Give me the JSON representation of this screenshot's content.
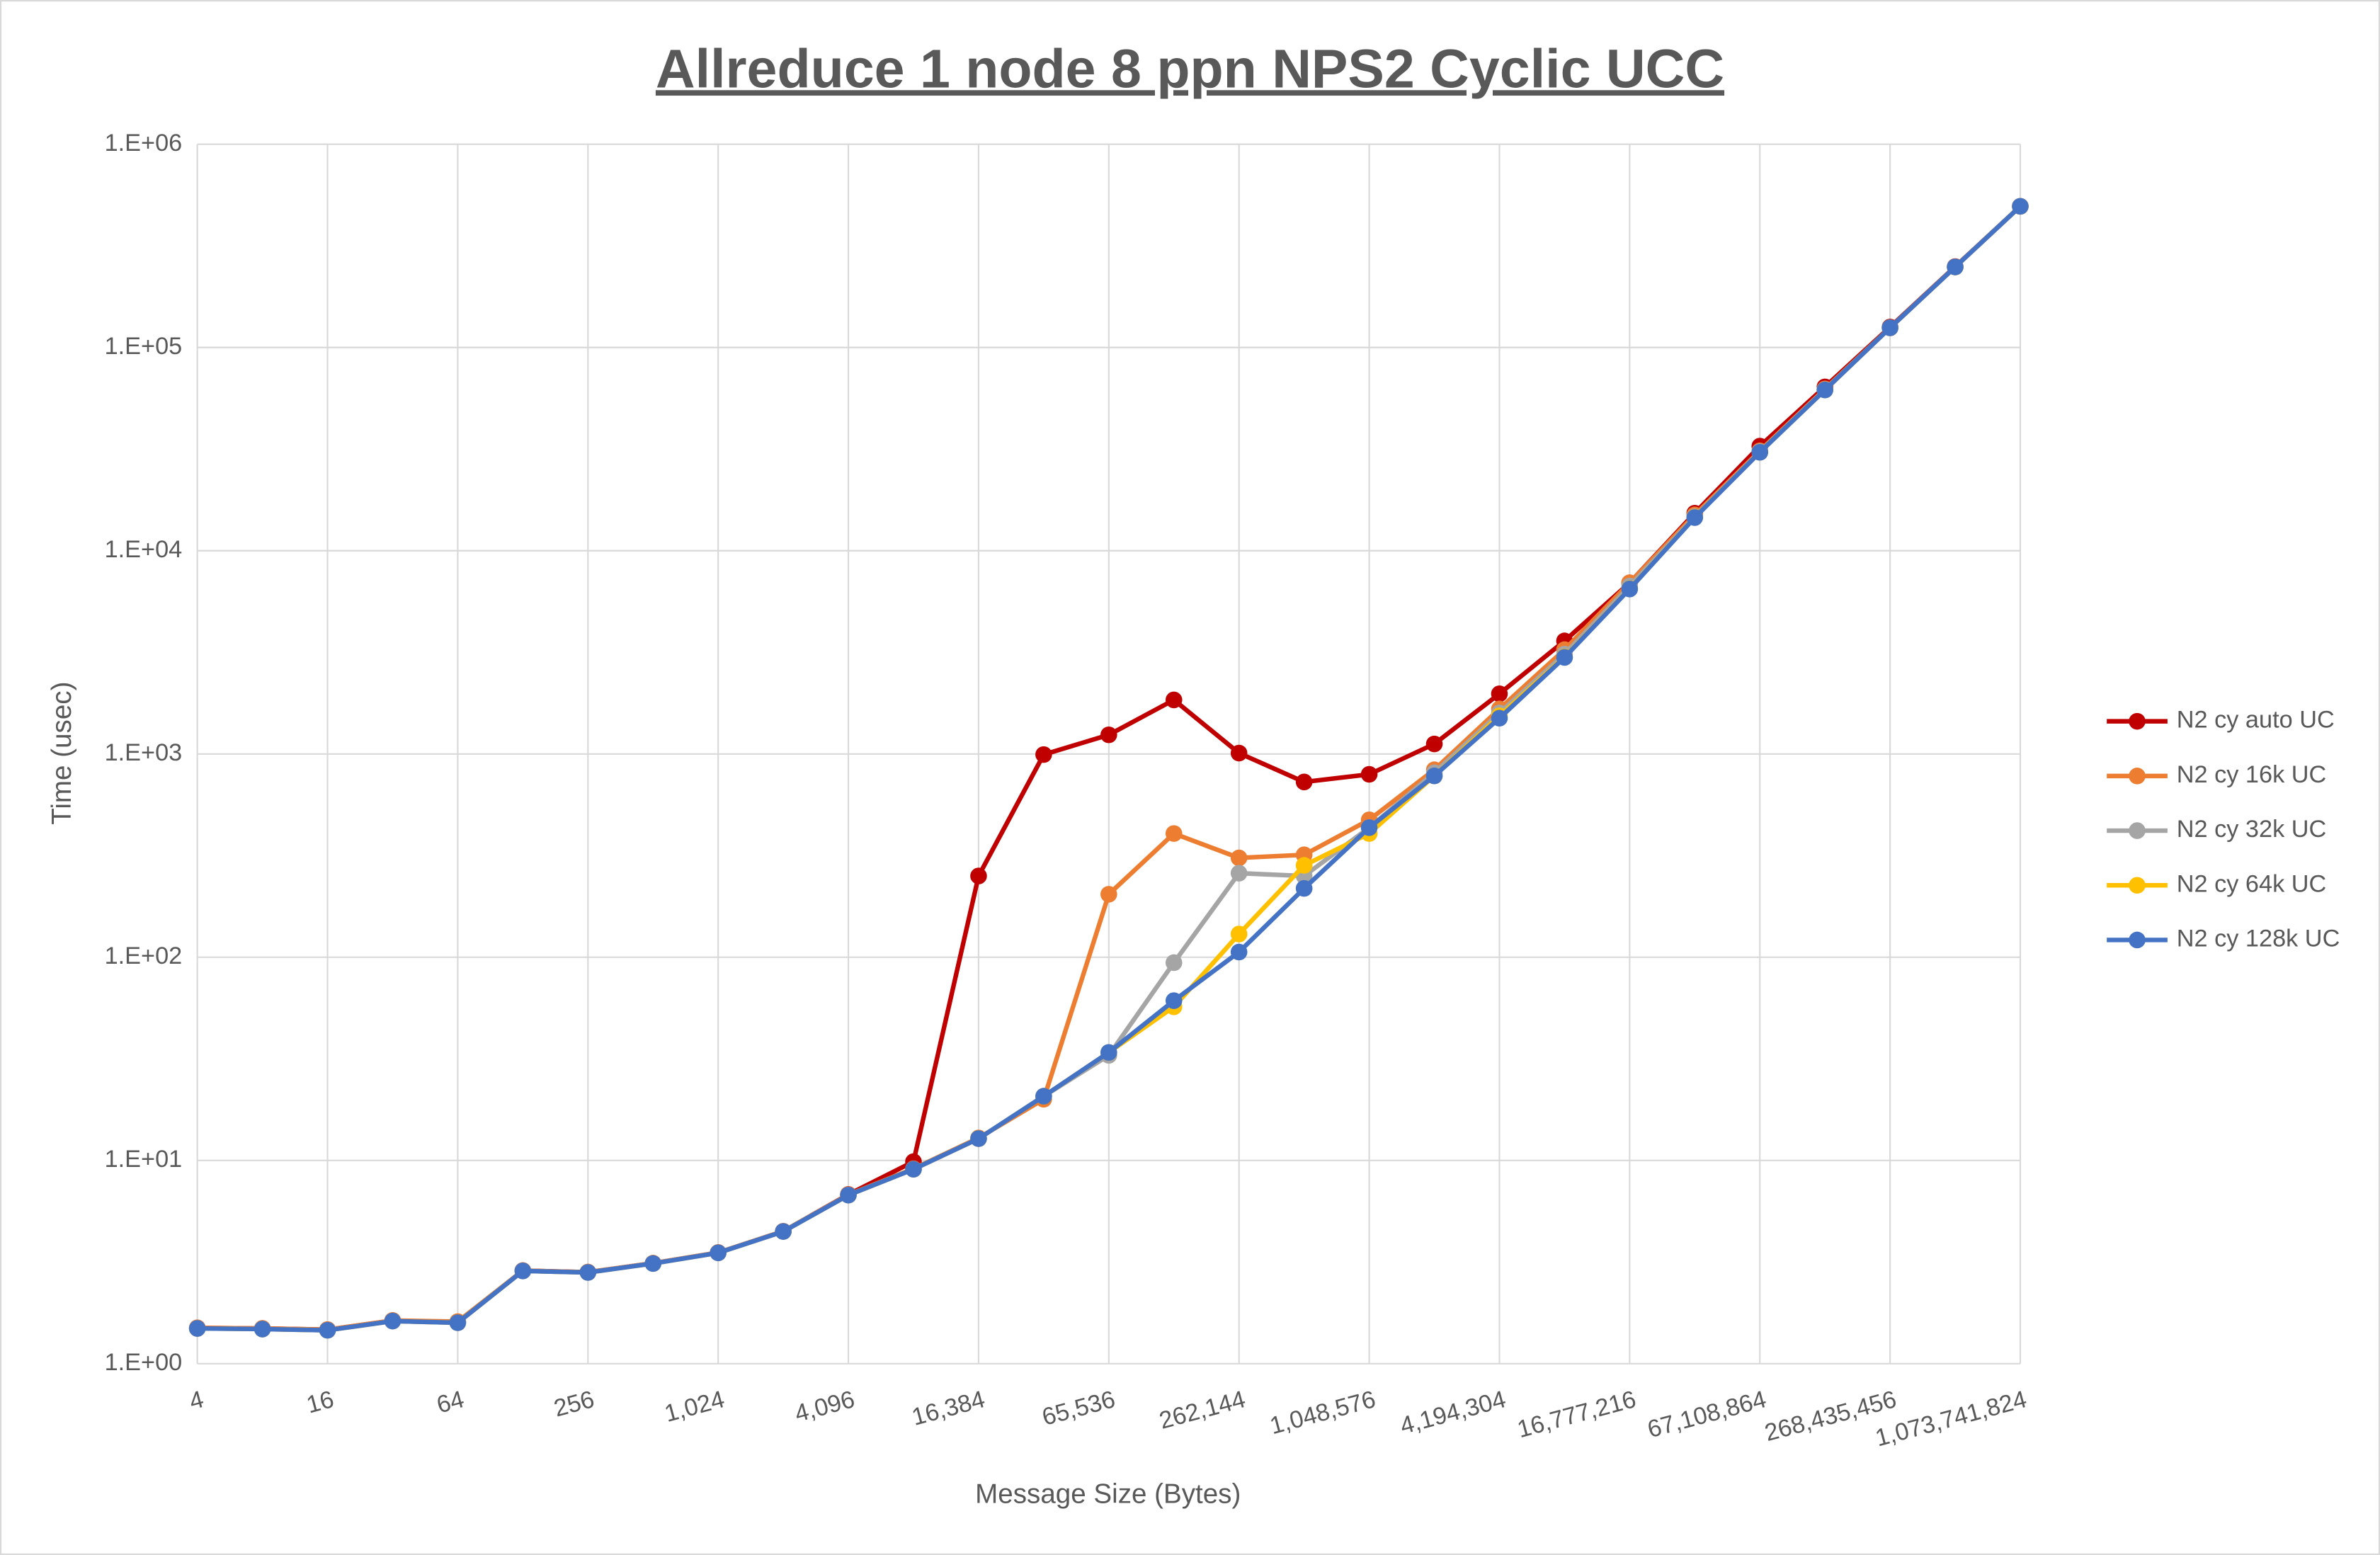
{
  "chart_data": {
    "type": "line",
    "title": "Allreduce 1 node 8 ppn NPS2 Cyclic UCC",
    "x_label": "Message Size (Bytes)",
    "y_label": "Time (usec)",
    "x_log_base": 2,
    "y_log": true,
    "grid": true,
    "legend": "right",
    "x": [
      4,
      8,
      16,
      32,
      64,
      128,
      256,
      512,
      1024,
      2048,
      4096,
      8192,
      16384,
      32768,
      65536,
      131072,
      262144,
      524288,
      1048576,
      2097152,
      4194304,
      8388608,
      16777216,
      33554432,
      67108864,
      134217728,
      268435456,
      536870912,
      1073741824
    ],
    "xlim": [
      4,
      1073741824
    ],
    "xticks": [
      4,
      16,
      64,
      256,
      {
        "value": 1024,
        "label": "1,024"
      },
      {
        "value": 4096,
        "label": "4,096"
      },
      {
        "value": 16384,
        "label": "16,384"
      },
      {
        "value": 65536,
        "label": "65,536"
      },
      {
        "value": 262144,
        "label": "262,144"
      },
      {
        "value": 1048576,
        "label": "1,048,576"
      },
      {
        "value": 4194304,
        "label": "4,194,304"
      },
      {
        "value": 16777216,
        "label": "16,777,216"
      },
      {
        "value": 67108864,
        "label": "67,108,864"
      },
      {
        "value": 268435456,
        "label": "268,435,456"
      },
      {
        "value": 1073741824,
        "label": "1,073,741,824"
      }
    ],
    "ylim": [
      1,
      1000000
    ],
    "yticks": [
      {
        "value": 1,
        "label": "1.E+00"
      },
      {
        "value": 10,
        "label": "1.E+01"
      },
      {
        "value": 100,
        "label": "1.E+02"
      },
      {
        "value": 1000,
        "label": "1.E+03"
      },
      {
        "value": 10000,
        "label": "1.E+04"
      },
      {
        "value": 100000,
        "label": "1.E+05"
      },
      {
        "value": 1000000,
        "label": "1.E+06"
      }
    ],
    "series": [
      {
        "name": "N2 cy auto UC",
        "color": "#c00000",
        "values": [
          1.5,
          1.49,
          1.47,
          1.63,
          1.6,
          2.87,
          2.82,
          3.12,
          3.52,
          4.48,
          6.8,
          9.86,
          251,
          993,
          1242,
          1845,
          1010,
          728,
          794,
          1120,
          1977,
          3600,
          6950,
          15300,
          32700,
          64000,
          126000,
          250000,
          495000
        ]
      },
      {
        "name": "N2 cy 16k UC",
        "color": "#ed7d31",
        "values": [
          1.5,
          1.49,
          1.47,
          1.63,
          1.61,
          2.87,
          2.82,
          3.12,
          3.52,
          4.48,
          6.78,
          9.1,
          12.9,
          20,
          204,
          406,
          308,
          319,
          474,
          836,
          1665,
          3260,
          6950,
          15000,
          31000,
          62500,
          125000,
          249000,
          495000
        ]
      },
      {
        "name": "N2 cy 32k UC",
        "color": "#a5a5a5",
        "values": [
          1.49,
          1.48,
          1.46,
          1.62,
          1.59,
          2.86,
          2.81,
          3.11,
          3.51,
          4.47,
          6.75,
          9.05,
          12.8,
          20.7,
          32.9,
          94,
          259,
          251,
          434,
          808,
          1590,
          3100,
          6700,
          14700,
          30700,
          62000,
          125000,
          249000,
          495000
        ]
      },
      {
        "name": "N2 cy 64k UC",
        "color": "#ffc000",
        "values": [
          1.49,
          1.48,
          1.46,
          1.62,
          1.59,
          2.86,
          2.81,
          3.11,
          3.51,
          4.47,
          6.75,
          9.05,
          12.8,
          20.7,
          34,
          57,
          130,
          283,
          406,
          780,
          1540,
          3000,
          6500,
          14600,
          30500,
          61800,
          125000,
          249000,
          495000
        ]
      },
      {
        "name": "N2 cy 128k UC",
        "color": "#4472c4",
        "values": [
          1.49,
          1.48,
          1.46,
          1.62,
          1.59,
          2.86,
          2.81,
          3.11,
          3.51,
          4.47,
          6.75,
          9.05,
          12.8,
          20.7,
          34.0,
          61.1,
          106,
          218,
          434,
          780,
          1500,
          2985,
          6480,
          14560,
          30500,
          61800,
          125000,
          249000,
          495000
        ]
      }
    ]
  }
}
